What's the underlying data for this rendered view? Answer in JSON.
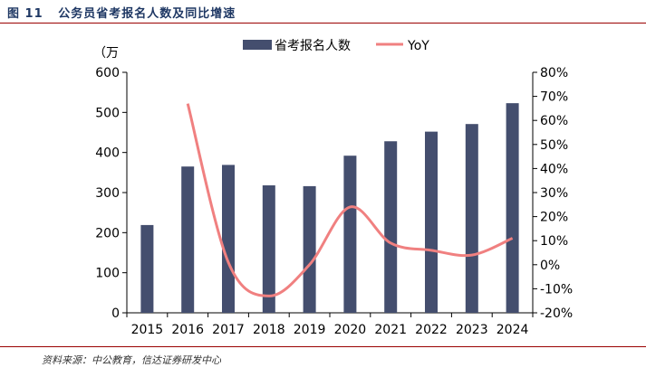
{
  "figure": {
    "label": "图 11",
    "title": "公务员省考报名人数及同比增速",
    "source": "资料来源：中公教育，信达证券研发中心"
  },
  "chart_data": {
    "type": "bar",
    "categories": [
      "2015",
      "2016",
      "2017",
      "2018",
      "2019",
      "2020",
      "2021",
      "2022",
      "2023",
      "2024"
    ],
    "ylabel": "（万",
    "ylim": [
      0,
      600
    ],
    "yticks": [
      "0",
      "100",
      "200",
      "300",
      "400",
      "500",
      "600"
    ],
    "y2lim": [
      -20,
      80
    ],
    "y2ticks": [
      "-20%",
      "-10%",
      "0%",
      "10%",
      "20%",
      "30%",
      "40%",
      "50%",
      "60%",
      "70%",
      "80%"
    ],
    "series": [
      {
        "name": "省考报名人数",
        "type": "bar",
        "axis": "left",
        "color": "#444e6e",
        "values": [
          219,
          365,
          369,
          318,
          316,
          392,
          428,
          452,
          471,
          523
        ]
      },
      {
        "name": "YoY",
        "type": "line",
        "axis": "right",
        "color": "#f08080",
        "values": [
          null,
          67,
          1,
          -13,
          0,
          24,
          9,
          6,
          4,
          11
        ]
      }
    ],
    "legend": "top-center",
    "grid": false
  }
}
